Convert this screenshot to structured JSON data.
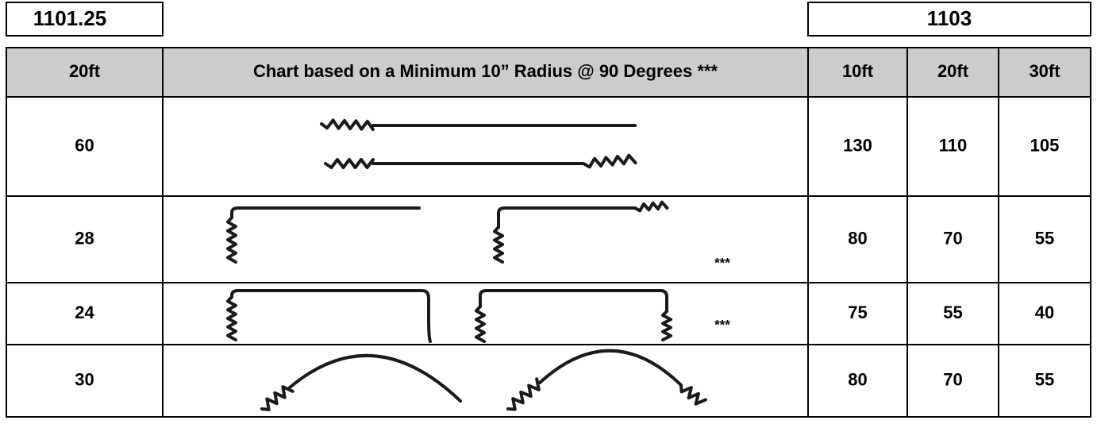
{
  "left_box": "1101.25",
  "right_box": "1103",
  "table": {
    "header": [
      "20ft",
      "Chart based on a Minimum 10” Radius @ 90 Degrees ***",
      "10ft",
      "20ft",
      "30ft"
    ],
    "rows": [
      {
        "label": "60",
        "values": [
          "130",
          "110",
          "105"
        ]
      },
      {
        "label": "28",
        "note": "***",
        "values": [
          "80",
          "70",
          "55"
        ]
      },
      {
        "label": "24",
        "note": "***",
        "values": [
          "75",
          "55",
          "40"
        ]
      },
      {
        "label": "30",
        "values": [
          "80",
          "70",
          "55"
        ]
      }
    ]
  }
}
